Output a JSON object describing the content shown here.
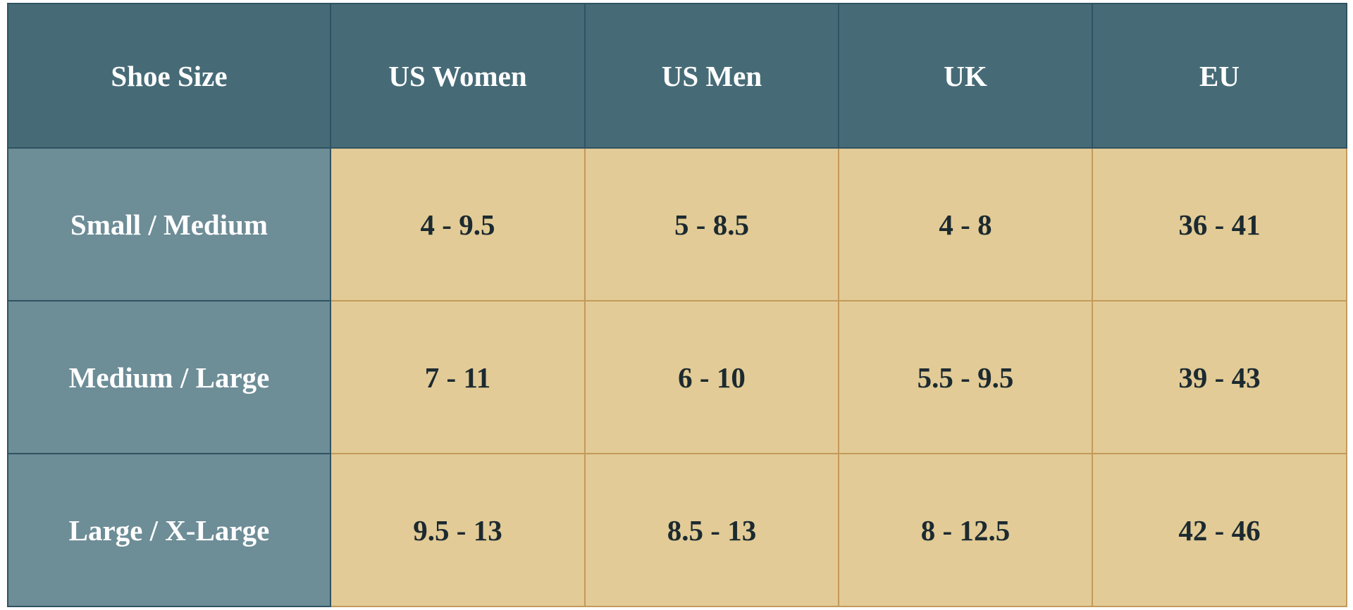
{
  "headers": [
    "Shoe Size",
    "US Women",
    "US Men",
    "UK",
    "EU"
  ],
  "rows": [
    {
      "label": "Small / Medium",
      "values": [
        "4 - 9.5",
        "5 - 8.5",
        "4 - 8",
        "36 - 41"
      ]
    },
    {
      "label": "Medium / Large",
      "values": [
        "7 - 11",
        "6 - 10",
        "5.5 - 9.5",
        "39 - 43"
      ]
    },
    {
      "label": "Large / X-Large",
      "values": [
        "9.5 - 13",
        "8.5 - 13",
        "8 - 12.5",
        "42 - 46"
      ]
    }
  ],
  "colors": {
    "header": "#466b77",
    "row_label": "#6d8d97",
    "cell": "#e2cb96",
    "text": "#1c2a30"
  }
}
